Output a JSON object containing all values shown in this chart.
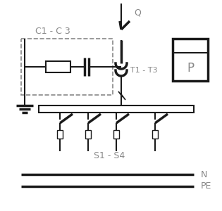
{
  "bg_color": "#ffffff",
  "line_color": "#1a1a1a",
  "gray_color": "#888888",
  "title_color": "#888888",
  "lw": 1.5,
  "lw_thick": 2.5,
  "fig_w": 3.15,
  "fig_h": 3.0,
  "labels": {
    "C1C3": "C1 - C 3",
    "Q": "Q",
    "T1T3": "T1 - T3",
    "P": "P",
    "S1S4": "S1 - S4",
    "N": "N",
    "PE": "PE"
  }
}
